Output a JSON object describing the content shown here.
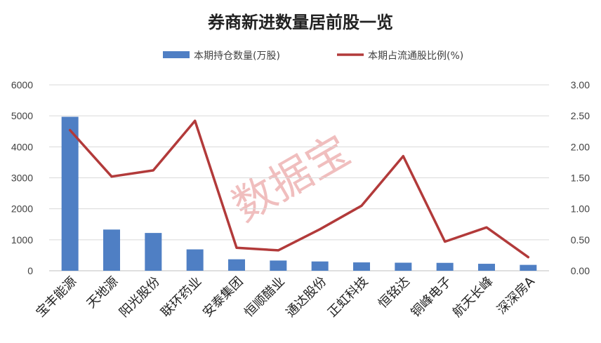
{
  "watermark": "数据宝",
  "colors": {
    "bar": "#4f7fc4",
    "line": "#b23a3a",
    "grid": "#d9d9d9",
    "axis": "#bfbfbf"
  },
  "chart_data": {
    "type": "bar",
    "title": "券商新进数量居前股一览",
    "categories": [
      "宝丰能源",
      "天地源",
      "阳光股份",
      "联环药业",
      "安泰集团",
      "恒顺醋业",
      "通达股份",
      "正虹科技",
      "恒铭达",
      "铜峰电子",
      "航天长峰",
      "深深房A"
    ],
    "series": [
      {
        "name": "本期持仓数量(万股)",
        "type": "bar",
        "axis": "left",
        "values": [
          4970,
          1330,
          1220,
          690,
          370,
          330,
          300,
          270,
          260,
          255,
          225,
          190
        ]
      },
      {
        "name": "本期占流通股比例(%)",
        "type": "line",
        "axis": "right",
        "values": [
          2.27,
          1.52,
          1.62,
          2.42,
          0.37,
          0.33,
          0.67,
          1.05,
          1.85,
          0.47,
          0.7,
          0.22
        ]
      }
    ],
    "y_left": {
      "min": 0,
      "max": 6000,
      "ticks": [
        "0",
        "1000",
        "2000",
        "3000",
        "4000",
        "5000",
        "6000"
      ]
    },
    "y_right": {
      "min": 0,
      "max": 3,
      "ticks": [
        "0.00",
        "0.50",
        "1.00",
        "1.50",
        "2.00",
        "2.50",
        "3.00"
      ]
    },
    "grid": true,
    "legend_position": "top"
  }
}
